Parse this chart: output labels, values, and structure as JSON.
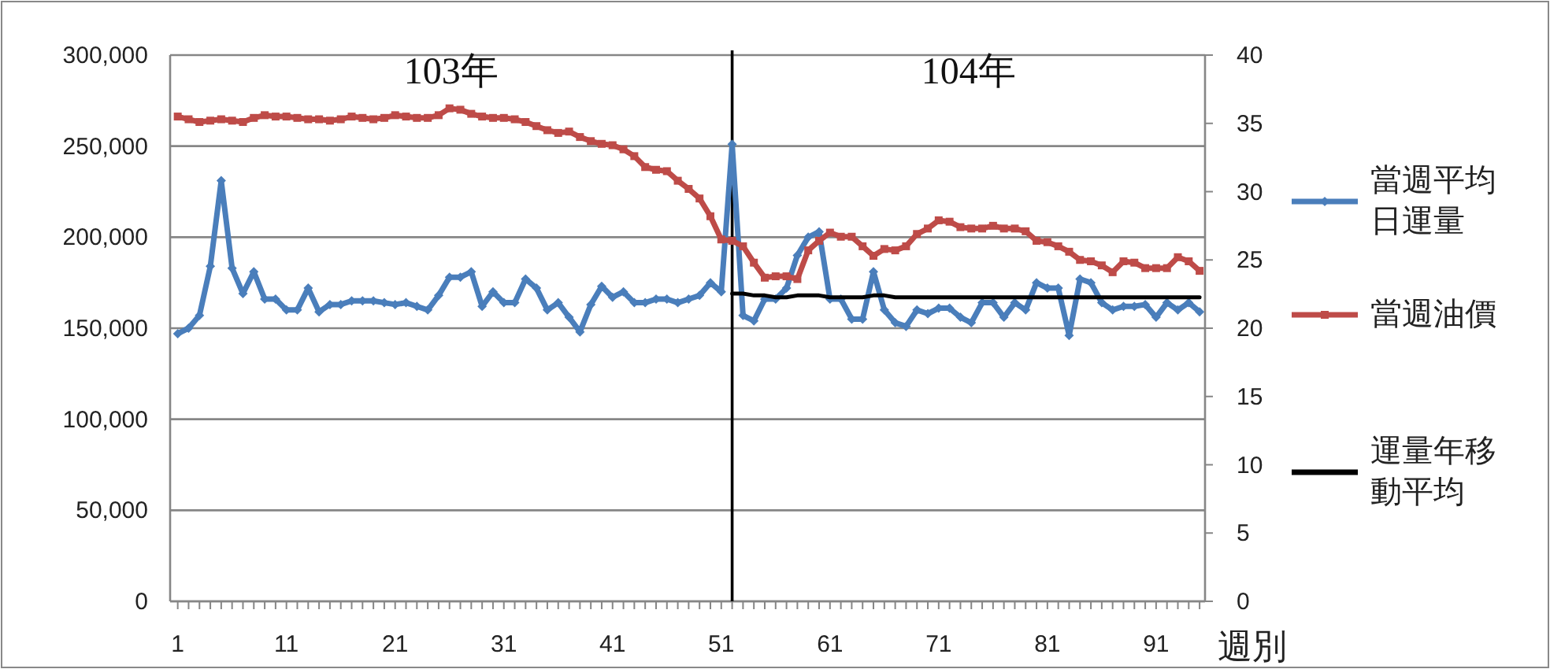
{
  "chart_data": {
    "type": "line",
    "xlabel": "週別",
    "x": [
      1,
      2,
      3,
      4,
      5,
      6,
      7,
      8,
      9,
      10,
      11,
      12,
      13,
      14,
      15,
      16,
      17,
      18,
      19,
      20,
      21,
      22,
      23,
      24,
      25,
      26,
      27,
      28,
      29,
      30,
      31,
      32,
      33,
      34,
      35,
      36,
      37,
      38,
      39,
      40,
      41,
      42,
      43,
      44,
      45,
      46,
      47,
      48,
      49,
      50,
      51,
      52,
      53,
      54,
      55,
      56,
      57,
      58,
      59,
      60,
      61,
      62,
      63,
      64,
      65,
      66,
      67,
      68,
      69,
      70,
      71,
      72,
      73,
      74,
      75,
      76,
      77,
      78,
      79,
      80,
      81,
      82,
      83,
      84,
      85,
      86,
      87,
      88,
      89,
      90,
      91,
      92,
      93,
      94,
      95
    ],
    "xlim": [
      0.3,
      95.5
    ],
    "xticks": [
      1,
      11,
      21,
      31,
      41,
      51,
      61,
      71,
      81,
      91
    ],
    "ylim": [
      0,
      300000
    ],
    "yticks": [
      0,
      {
        "value": 50000,
        "label": "50,000"
      },
      {
        "value": 100000,
        "label": "100,000"
      },
      {
        "value": 150000,
        "label": "150,000"
      },
      {
        "value": 200000,
        "label": "200,000"
      },
      {
        "value": 250000,
        "label": "250,000"
      },
      {
        "value": 300000,
        "label": "300,000"
      }
    ],
    "y2lim": [
      0,
      40
    ],
    "y2ticks": [
      0,
      5,
      10,
      15,
      20,
      25,
      30,
      35,
      40
    ],
    "grid": "y",
    "legend": "right",
    "series": [
      {
        "name": "當週平均日運量",
        "color": "#4a7ebb",
        "marker": "diamond",
        "values": [
          147000,
          150000,
          157000,
          184000,
          231000,
          183000,
          169000,
          181000,
          166000,
          166000,
          160000,
          160000,
          172000,
          159000,
          163000,
          163000,
          165000,
          165000,
          165000,
          164000,
          163000,
          164000,
          162000,
          160000,
          168000,
          178000,
          178000,
          181000,
          162000,
          170000,
          164000,
          164000,
          177000,
          172000,
          160000,
          164000,
          156000,
          148000,
          163000,
          173000,
          167000,
          170000,
          164000,
          164000,
          166000,
          166000,
          164000,
          166000,
          168000,
          175000,
          170000,
          251000,
          157000,
          154000,
          166000,
          166000,
          172000,
          190000,
          200000,
          203000,
          166000,
          166000,
          155000,
          155000,
          181000,
          160000,
          153000,
          151000,
          160000,
          158000,
          161000,
          161000,
          156000,
          153000,
          164000,
          164000,
          156000,
          164000,
          160000,
          175000,
          172000,
          172000,
          146000,
          177000,
          175000,
          164000,
          160000,
          162000,
          162000,
          163000,
          156000,
          164000,
          160000,
          164000,
          159000
        ]
      },
      {
        "name": "當週油價",
        "color": "#be4b48",
        "marker": "square",
        "axis": "y2",
        "values": [
          35.5,
          35.3,
          35.1,
          35.2,
          35.3,
          35.2,
          35.1,
          35.4,
          35.6,
          35.5,
          35.5,
          35.4,
          35.3,
          35.3,
          35.2,
          35.3,
          35.5,
          35.4,
          35.3,
          35.4,
          35.6,
          35.5,
          35.4,
          35.4,
          35.6,
          36.1,
          36.0,
          35.7,
          35.5,
          35.4,
          35.4,
          35.3,
          35.1,
          34.8,
          34.5,
          34.3,
          34.4,
          34.0,
          33.7,
          33.5,
          33.4,
          33.1,
          32.6,
          31.8,
          31.6,
          31.5,
          30.8,
          30.2,
          29.5,
          28.2,
          26.5,
          26.4,
          26.0,
          24.8,
          23.7,
          23.8,
          23.8,
          23.6,
          25.7,
          26.4,
          27.0,
          26.7,
          26.7,
          26.0,
          25.3,
          25.8,
          25.7,
          26.0,
          26.9,
          27.3,
          27.9,
          27.8,
          27.4,
          27.3,
          27.3,
          27.5,
          27.3,
          27.3,
          27.1,
          26.4,
          26.3,
          26.0,
          25.6,
          25.0,
          24.9,
          24.6,
          24.1,
          24.9,
          24.8,
          24.4,
          24.4,
          24.4,
          25.2,
          24.9,
          24.2
        ]
      },
      {
        "name": "運量年移動平均",
        "color": "#000000",
        "marker": "none",
        "x": [
          52,
          53,
          54,
          55,
          56,
          57,
          58,
          59,
          60,
          61,
          62,
          63,
          64,
          65,
          66,
          67,
          68,
          69,
          70,
          71,
          72,
          73,
          74,
          75,
          76,
          77,
          78,
          79,
          80,
          81,
          82,
          83,
          84,
          85,
          86,
          87,
          88,
          89,
          90,
          91,
          92,
          93,
          94,
          95
        ],
        "values": [
          169000,
          169000,
          168000,
          168000,
          167000,
          167000,
          168000,
          168000,
          168000,
          167000,
          167000,
          167000,
          167000,
          168000,
          168000,
          167000,
          167000,
          167000,
          167000,
          167000,
          167000,
          167000,
          167000,
          167000,
          167000,
          167000,
          167000,
          167000,
          167000,
          167000,
          167000,
          167000,
          167000,
          167000,
          167000,
          167000,
          167000,
          167000,
          167000,
          167000,
          167000,
          167000,
          167000,
          167000
        ]
      }
    ],
    "ref_lines": [
      {
        "axis": "x",
        "value": 52,
        "color": "#000000"
      }
    ],
    "annotations": [
      "103年",
      "104年"
    ]
  }
}
